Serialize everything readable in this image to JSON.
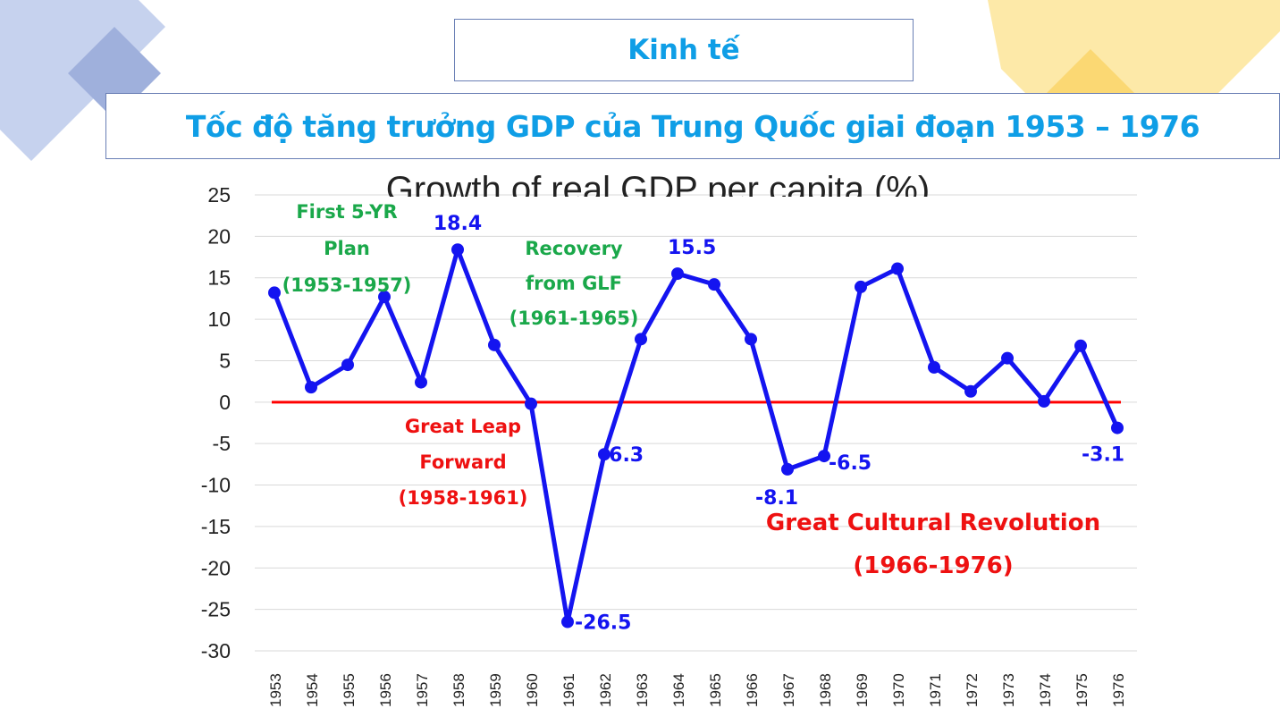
{
  "slide": {
    "heading": "Kinh tế",
    "subheading": "Tốc độ tăng trưởng GDP của Trung Quốc giai đoạn 1953 – 1976"
  },
  "colors": {
    "accent_text": "#0f9ee6",
    "series": "#1414f0",
    "zero_line": "#ff0000",
    "annotation_green": "#1aa84a",
    "annotation_red": "#ee1111",
    "deco_blue": "#c6d2ee",
    "deco_yellow": "#fde9a8"
  },
  "chart_data": {
    "type": "line",
    "title": "Growth of real GDP per capita (%)",
    "xlabel": "",
    "ylabel": "",
    "ylim": [
      -30,
      25
    ],
    "yticks": [
      25,
      20,
      15,
      10,
      5,
      0,
      -5,
      -10,
      -15,
      -20,
      -25,
      -30
    ],
    "grid": true,
    "categories": [
      "1953",
      "1954",
      "1955",
      "1956",
      "1957",
      "1958",
      "1959",
      "1960",
      "1961",
      "1962",
      "1963",
      "1964",
      "1965",
      "1966",
      "1967",
      "1968",
      "1969",
      "1970",
      "1971",
      "1972",
      "1973",
      "1974",
      "1975",
      "1976"
    ],
    "series": [
      {
        "values": [
          13.2,
          1.8,
          4.5,
          12.7,
          2.4,
          18.4,
          6.9,
          -0.2,
          -26.5,
          -6.3,
          7.6,
          15.5,
          14.2,
          7.6,
          -8.1,
          -6.5,
          13.9,
          16.1,
          4.2,
          1.3,
          5.3,
          0.1,
          6.8,
          -3.1
        ]
      }
    ],
    "zero_line": 0,
    "data_labels": [
      {
        "category": "1958",
        "text": "18.4"
      },
      {
        "category": "1961",
        "text": "-26.5"
      },
      {
        "category": "1962",
        "text": "-6.3"
      },
      {
        "category": "1964",
        "text": "15.5"
      },
      {
        "category": "1967",
        "text": "-8.1"
      },
      {
        "category": "1968",
        "text": "-6.5"
      },
      {
        "category": "1976",
        "text": "-3.1"
      }
    ],
    "annotations": [
      {
        "lines": [
          "First 5-YR",
          "Plan",
          "(1953-1957)"
        ],
        "color": "green"
      },
      {
        "lines": [
          "Recovery",
          "from GLF",
          "(1961-1965)"
        ],
        "color": "green"
      },
      {
        "lines": [
          "Great Leap",
          "Forward",
          "(1958-1961)"
        ],
        "color": "red"
      },
      {
        "lines": [
          "Great Cultural Revolution",
          "(1966-1976)"
        ],
        "color": "red"
      }
    ]
  }
}
